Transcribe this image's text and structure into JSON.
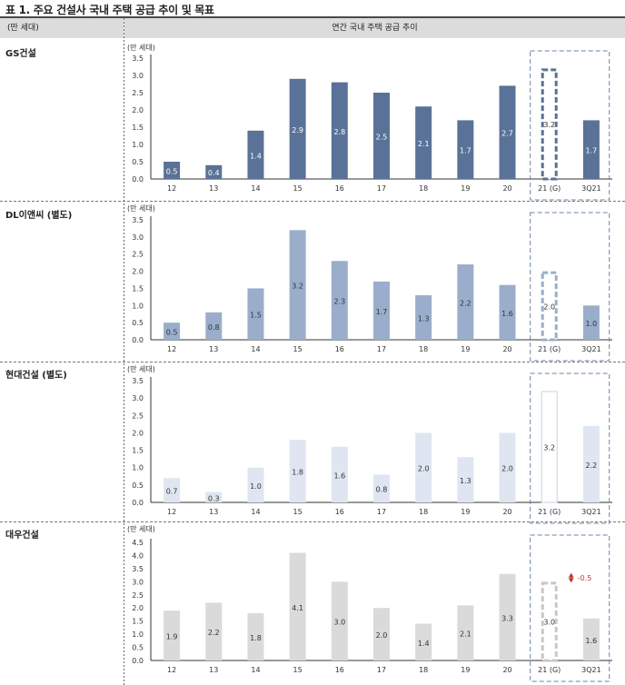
{
  "title": "표 1. 주요 건설사 국내 주택 공급 추이 및 목표",
  "header": {
    "left": "(만 세대)",
    "right": "연간 국내 주택 공급 추이"
  },
  "unit_label": "(만 세대)",
  "annotation": "-0.5",
  "chart_data": [
    {
      "type": "bar",
      "company": "GS건설",
      "categories": [
        "12",
        "13",
        "14",
        "15",
        "16",
        "17",
        "18",
        "19",
        "20",
        "21 (G)",
        "3Q21"
      ],
      "values": [
        0.5,
        0.4,
        1.4,
        2.9,
        2.8,
        2.5,
        2.1,
        1.7,
        2.7,
        3.2,
        1.7
      ],
      "labels": [
        "0.5",
        "0.4",
        "1.4",
        "2.9",
        "2.8",
        "2.5",
        "2.1",
        "1.7",
        "2.7",
        "3.2",
        "1.7"
      ],
      "ylim": [
        0,
        3.5
      ],
      "yticks": [
        "0.0",
        "0.5",
        "1.0",
        "1.5",
        "2.0",
        "2.5",
        "3.0",
        "3.5"
      ],
      "color": "#5a7297",
      "guidance_index": 9,
      "guidance_style": "dashed-outline"
    },
    {
      "type": "bar",
      "company": "DL이앤씨 (별도)",
      "categories": [
        "12",
        "13",
        "14",
        "15",
        "16",
        "17",
        "18",
        "19",
        "20",
        "21 (G)",
        "3Q21"
      ],
      "values": [
        0.5,
        0.8,
        1.5,
        3.2,
        2.3,
        1.7,
        1.3,
        2.2,
        1.6,
        2.0,
        1.0
      ],
      "labels": [
        "0.5",
        "0.8",
        "1.5",
        "3.2",
        "2.3",
        "1.7",
        "1.3",
        "2.2",
        "1.6",
        "2.0",
        "1.0"
      ],
      "ylim": [
        0,
        3.5
      ],
      "yticks": [
        "0.0",
        "0.5",
        "1.0",
        "1.5",
        "2.0",
        "2.5",
        "3.0",
        "3.5"
      ],
      "color": "#9aaecb",
      "guidance_index": 9,
      "guidance_style": "dashed-outline"
    },
    {
      "type": "bar",
      "company": "현대건설 (별도)",
      "categories": [
        "12",
        "13",
        "14",
        "15",
        "16",
        "17",
        "18",
        "19",
        "20",
        "21 (G)",
        "3Q21"
      ],
      "values": [
        0.7,
        0.3,
        1.0,
        1.8,
        1.6,
        0.8,
        2.0,
        1.3,
        2.0,
        3.2,
        2.2
      ],
      "labels": [
        "0.7",
        "0.3",
        "1.0",
        "1.8",
        "1.6",
        "0.8",
        "2.0",
        "1.3",
        "2.0",
        "3.2",
        "2.2"
      ],
      "ylim": [
        0,
        3.5
      ],
      "yticks": [
        "0.0",
        "0.5",
        "1.0",
        "1.5",
        "2.0",
        "2.5",
        "3.0",
        "3.5"
      ],
      "color": "#dfe6f1",
      "guidance_index": 9,
      "guidance_style": "outline"
    },
    {
      "type": "bar",
      "company": "대우건설",
      "categories": [
        "12",
        "13",
        "14",
        "15",
        "16",
        "17",
        "18",
        "19",
        "20",
        "21 (G)",
        "3Q21"
      ],
      "values": [
        1.9,
        2.2,
        1.8,
        4.1,
        3.0,
        2.0,
        1.4,
        2.1,
        3.3,
        3.0,
        1.6
      ],
      "labels": [
        "1.9",
        "2.2",
        "1.8",
        "4.1",
        "3.0",
        "2.0",
        "1.4",
        "2.1",
        "3.3",
        "3.0",
        "1.6"
      ],
      "ylim": [
        0,
        4.5
      ],
      "yticks": [
        "0.0",
        "0.5",
        "1.0",
        "1.5",
        "2.0",
        "2.5",
        "3.0",
        "3.5",
        "4.0",
        "4.5"
      ],
      "color": "#dadada",
      "guidance_index": 9,
      "guidance_style": "dashed-outline"
    }
  ],
  "colors": {
    "guidance_box": "#6a85a8",
    "annotation": "#c0392b",
    "axis": "#333333"
  }
}
